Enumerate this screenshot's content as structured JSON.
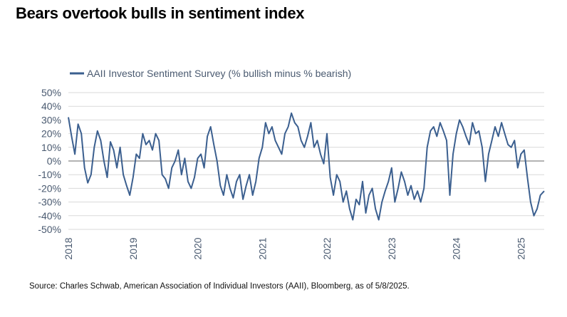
{
  "title": "Bears overtook bulls in sentiment index",
  "source": "Source: Charles Schwab, American Association of Individual Investors (AAII), Bloomberg, as of 5/8/2025.",
  "colors": {
    "series": "#3b5f8f",
    "grid": "#d9d9d9",
    "zero_line": "#9a9a9a",
    "axis_text": "#4a5a70"
  },
  "chart_data": {
    "type": "line",
    "series": [
      {
        "name": "AAII Investor Sentiment Survey (% bullish minus % bearish)",
        "x": [
          2018.0,
          2018.05,
          2018.1,
          2018.15,
          2018.2,
          2018.25,
          2018.3,
          2018.35,
          2018.4,
          2018.45,
          2018.5,
          2018.55,
          2018.6,
          2018.65,
          2018.7,
          2018.75,
          2018.8,
          2018.85,
          2018.9,
          2018.95,
          2019.0,
          2019.05,
          2019.1,
          2019.15,
          2019.2,
          2019.25,
          2019.3,
          2019.35,
          2019.4,
          2019.45,
          2019.5,
          2019.55,
          2019.6,
          2019.65,
          2019.7,
          2019.75,
          2019.8,
          2019.85,
          2019.9,
          2019.95,
          2020.0,
          2020.05,
          2020.1,
          2020.15,
          2020.2,
          2020.25,
          2020.3,
          2020.35,
          2020.4,
          2020.45,
          2020.5,
          2020.55,
          2020.6,
          2020.65,
          2020.7,
          2020.75,
          2020.8,
          2020.85,
          2020.9,
          2020.95,
          2021.0,
          2021.05,
          2021.1,
          2021.15,
          2021.2,
          2021.25,
          2021.3,
          2021.35,
          2021.4,
          2021.45,
          2021.5,
          2021.55,
          2021.6,
          2021.65,
          2021.7,
          2021.75,
          2021.8,
          2021.85,
          2021.9,
          2021.95,
          2022.0,
          2022.05,
          2022.1,
          2022.15,
          2022.2,
          2022.25,
          2022.3,
          2022.35,
          2022.4,
          2022.45,
          2022.5,
          2022.55,
          2022.6,
          2022.65,
          2022.7,
          2022.75,
          2022.8,
          2022.85,
          2022.9,
          2022.95,
          2023.0,
          2023.05,
          2023.1,
          2023.15,
          2023.2,
          2023.25,
          2023.3,
          2023.35,
          2023.4,
          2023.45,
          2023.5,
          2023.55,
          2023.6,
          2023.65,
          2023.7,
          2023.75,
          2023.8,
          2023.85,
          2023.9,
          2023.95,
          2024.0,
          2024.05,
          2024.1,
          2024.15,
          2024.2,
          2024.25,
          2024.3,
          2024.35,
          2024.4,
          2024.45,
          2024.5,
          2024.55,
          2024.6,
          2024.65,
          2024.7,
          2024.75,
          2024.8,
          2024.85,
          2024.9,
          2024.95,
          2025.0,
          2025.05,
          2025.1,
          2025.15,
          2025.2,
          2025.25,
          2025.3,
          2025.36
        ],
        "values": [
          32,
          18,
          5,
          27,
          20,
          -5,
          -16,
          -10,
          10,
          22,
          15,
          0,
          -12,
          14,
          8,
          -5,
          10,
          -10,
          -18,
          -25,
          -12,
          5,
          2,
          20,
          12,
          15,
          8,
          20,
          15,
          -10,
          -13,
          -20,
          -5,
          0,
          8,
          -10,
          2,
          -15,
          -20,
          -12,
          2,
          5,
          -5,
          18,
          25,
          12,
          0,
          -18,
          -25,
          -10,
          -20,
          -27,
          -15,
          -10,
          -28,
          -18,
          -10,
          -25,
          -15,
          2,
          10,
          28,
          20,
          25,
          15,
          10,
          5,
          20,
          25,
          35,
          28,
          25,
          15,
          10,
          18,
          28,
          10,
          15,
          5,
          -2,
          20,
          -12,
          -25,
          -10,
          -15,
          -30,
          -22,
          -35,
          -43,
          -28,
          -32,
          -15,
          -38,
          -25,
          -20,
          -35,
          -43,
          -30,
          -22,
          -15,
          -5,
          -30,
          -20,
          -8,
          -15,
          -25,
          -18,
          -28,
          -22,
          -30,
          -20,
          10,
          22,
          25,
          18,
          28,
          22,
          15,
          -25,
          5,
          20,
          30,
          25,
          18,
          12,
          28,
          20,
          22,
          10,
          -15,
          5,
          15,
          25,
          18,
          28,
          20,
          12,
          10,
          15,
          -5,
          5,
          8,
          -12,
          -30,
          -40,
          -35,
          -25,
          -22
        ]
      }
    ],
    "xlim": [
      2018.0,
      2025.36
    ],
    "ylim": [
      -50,
      50
    ],
    "yticks": [
      -50,
      -40,
      -30,
      -20,
      -10,
      0,
      10,
      20,
      30,
      40,
      50
    ],
    "ytick_labels": [
      "-50%",
      "-40%",
      "-30%",
      "-20%",
      "-10%",
      "0%",
      "10%",
      "20%",
      "30%",
      "40%",
      "50%"
    ],
    "xticks": [
      2018,
      2019,
      2020,
      2021,
      2022,
      2023,
      2024,
      2025
    ],
    "xtick_labels": [
      "2018",
      "2019",
      "2020",
      "2021",
      "2022",
      "2023",
      "2024",
      "2025"
    ],
    "grid": "horizontal",
    "zero_line": true,
    "legend_position": "top-left",
    "xlabel": "",
    "ylabel": ""
  }
}
